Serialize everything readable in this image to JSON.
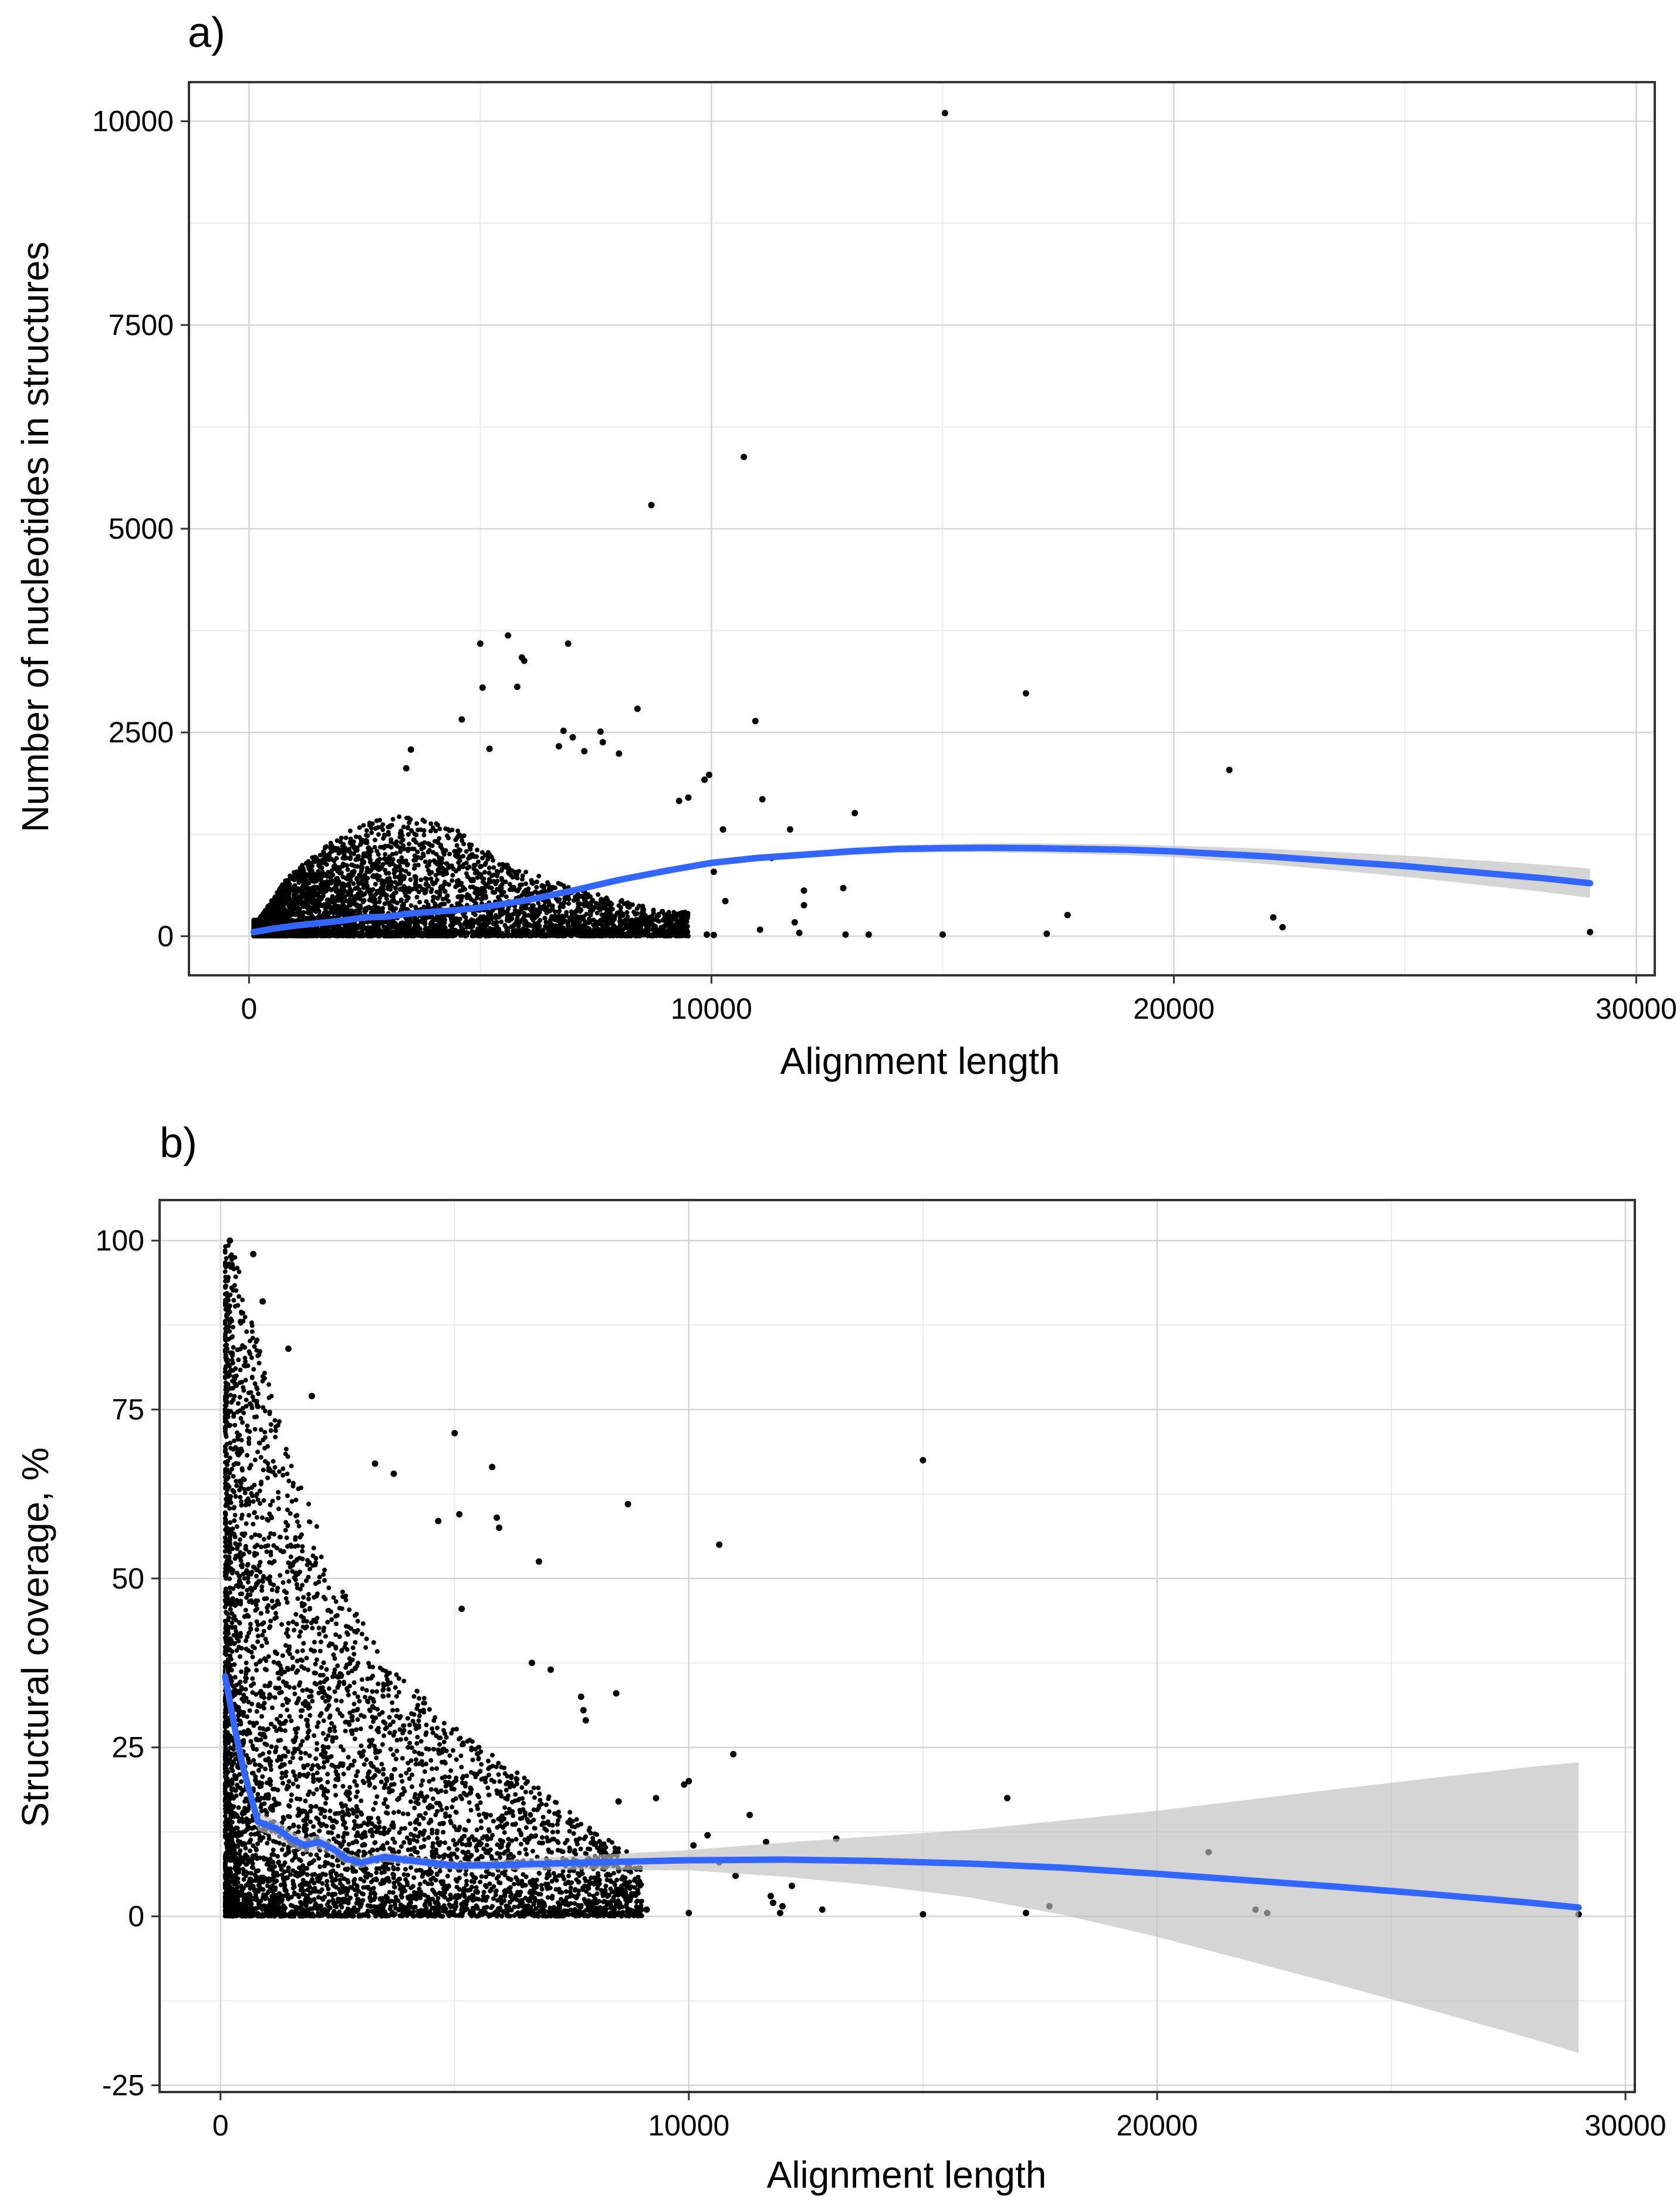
{
  "chart_data": [
    {
      "panel_label": "a)",
      "type": "scatter",
      "title": "",
      "xlabel": "Alignment length",
      "ylabel": "Number of nucleotides in structures",
      "xlim": [
        -1300,
        30400
      ],
      "ylim": [
        -480,
        10480
      ],
      "x_ticks": [
        0,
        10000,
        20000,
        30000
      ],
      "x_tick_labels": [
        "0",
        "10000",
        "20000",
        "30000"
      ],
      "y_ticks": [
        0,
        2500,
        5000,
        7500,
        10000
      ],
      "y_tick_labels": [
        "0",
        "2500",
        "5000",
        "7500",
        "10000"
      ],
      "grid": true,
      "point_color": "#000000",
      "smooth_color": "#3366ff",
      "band_color": "#bebebe",
      "dense_cloud": {
        "description": "thousands of points",
        "x_range": [
          100,
          9500
        ],
        "y_max_at_x": [
          [
            200,
            200
          ],
          [
            800,
            700
          ],
          [
            1600,
            1100
          ],
          [
            2500,
            1400
          ],
          [
            3500,
            1500
          ],
          [
            4500,
            1300
          ],
          [
            5500,
            900
          ],
          [
            7000,
            600
          ],
          [
            9000,
            300
          ]
        ]
      },
      "points": [
        [
          15050,
          10100
        ],
        [
          10700,
          5880
        ],
        [
          8700,
          5290
        ],
        [
          5600,
          3690
        ],
        [
          5000,
          3590
        ],
        [
          6900,
          3590
        ],
        [
          5900,
          3420
        ],
        [
          5950,
          3380
        ],
        [
          5800,
          3060
        ],
        [
          5050,
          3050
        ],
        [
          8400,
          2790
        ],
        [
          4600,
          2660
        ],
        [
          10950,
          2640
        ],
        [
          6800,
          2520
        ],
        [
          7000,
          2440
        ],
        [
          7600,
          2510
        ],
        [
          7650,
          2380
        ],
        [
          7250,
          2270
        ],
        [
          6700,
          2330
        ],
        [
          8000,
          2240
        ],
        [
          5200,
          2300
        ],
        [
          3500,
          2290
        ],
        [
          3400,
          2060
        ],
        [
          9950,
          1980
        ],
        [
          9850,
          1920
        ],
        [
          9500,
          1700
        ],
        [
          9300,
          1660
        ],
        [
          11100,
          1680
        ],
        [
          11700,
          1310
        ],
        [
          13100,
          1510
        ],
        [
          10250,
          1310
        ],
        [
          11300,
          960
        ],
        [
          10050,
          790
        ],
        [
          10300,
          430
        ],
        [
          12000,
          560
        ],
        [
          12000,
          380
        ],
        [
          11800,
          170
        ],
        [
          11900,
          40
        ],
        [
          11050,
          80
        ],
        [
          9900,
          20
        ],
        [
          10050,
          15
        ],
        [
          12850,
          590
        ],
        [
          12900,
          20
        ],
        [
          13400,
          20
        ],
        [
          15000,
          20
        ],
        [
          16800,
          2980
        ],
        [
          17700,
          260
        ],
        [
          17250,
          30
        ],
        [
          21200,
          2040
        ],
        [
          22150,
          230
        ],
        [
          22350,
          110
        ],
        [
          29000,
          50
        ]
      ],
      "smooth": {
        "x": [
          100,
          500,
          1000,
          2000,
          2500,
          3000,
          3500,
          4500,
          5000,
          6000,
          7000,
          8000,
          9000,
          10000,
          11000,
          12000,
          13000,
          14000,
          15000,
          16000,
          17000,
          18000,
          19000,
          20000,
          21000,
          22000,
          23000,
          24000,
          25000,
          26000,
          27000,
          28000,
          29000
        ],
        "y": [
          50,
          90,
          130,
          190,
          230,
          240,
          280,
          320,
          350,
          440,
          560,
          690,
          800,
          900,
          960,
          1000,
          1040,
          1070,
          1080,
          1085,
          1080,
          1070,
          1060,
          1040,
          1010,
          980,
          940,
          900,
          860,
          810,
          760,
          710,
          650
        ]
      },
      "band_halfwidth": {
        "x": [
          100,
          5000,
          10000,
          15000,
          20000,
          25000,
          29000
        ],
        "y": [
          20,
          30,
          40,
          50,
          70,
          130,
          180
        ]
      }
    },
    {
      "panel_label": "b)",
      "type": "scatter",
      "title": "",
      "xlabel": "Alignment length",
      "ylabel": "Structural coverage, %",
      "xlim": [
        -1300,
        30200
      ],
      "ylim": [
        -26,
        106
      ],
      "x_ticks": [
        0,
        10000,
        20000,
        30000
      ],
      "x_tick_labels": [
        "0",
        "10000",
        "20000",
        "30000"
      ],
      "y_ticks": [
        -25,
        0,
        25,
        50,
        75,
        100
      ],
      "y_tick_labels": [
        "-25",
        "0",
        "25",
        "50",
        "75",
        "100"
      ],
      "grid": true,
      "point_color": "#000000",
      "smooth_color": "#3366ff",
      "band_color": "#bebebe",
      "dense_cloud": {
        "description": "thousands of points",
        "x_range": [
          100,
          9000
        ],
        "y_max_at_x": [
          [
            100,
            100
          ],
          [
            300,
            98
          ],
          [
            600,
            90
          ],
          [
            1000,
            80
          ],
          [
            1500,
            68
          ],
          [
            2500,
            50
          ],
          [
            3500,
            38
          ],
          [
            5000,
            28
          ],
          [
            7000,
            18
          ],
          [
            9000,
            8
          ]
        ]
      },
      "points": [
        [
          200,
          100
        ],
        [
          700,
          98
        ],
        [
          900,
          91
        ],
        [
          1450,
          84
        ],
        [
          1950,
          77
        ],
        [
          3300,
          67
        ],
        [
          3700,
          65.5
        ],
        [
          5000,
          71.5
        ],
        [
          5800,
          66.5
        ],
        [
          5900,
          59
        ],
        [
          5100,
          59.5
        ],
        [
          5950,
          57.5
        ],
        [
          4650,
          58.5
        ],
        [
          8700,
          61
        ],
        [
          6800,
          52.5
        ],
        [
          5150,
          45.5
        ],
        [
          15000,
          67.5
        ],
        [
          10650,
          55
        ],
        [
          6650,
          37.5
        ],
        [
          7050,
          36.5
        ],
        [
          8450,
          33
        ],
        [
          7700,
          32.5
        ],
        [
          7750,
          30.5
        ],
        [
          7800,
          29
        ],
        [
          10950,
          24
        ],
        [
          10000,
          20
        ],
        [
          9900,
          19.5
        ],
        [
          9300,
          17.5
        ],
        [
          8500,
          17
        ],
        [
          11300,
          15
        ],
        [
          13150,
          11.5
        ],
        [
          11650,
          11
        ],
        [
          10400,
          12
        ],
        [
          10100,
          10.5
        ],
        [
          10650,
          8
        ],
        [
          11000,
          6
        ],
        [
          11750,
          3
        ],
        [
          11800,
          2
        ],
        [
          11950,
          0.5
        ],
        [
          12200,
          4.5
        ],
        [
          12000,
          1.5
        ],
        [
          12850,
          1
        ],
        [
          16800,
          17.5
        ],
        [
          21100,
          9.5
        ],
        [
          17700,
          1.5
        ],
        [
          17200,
          0.5
        ],
        [
          15000,
          0.3
        ],
        [
          22100,
          1
        ],
        [
          22350,
          0.5
        ],
        [
          29000,
          0.3
        ],
        [
          10000,
          0.5
        ],
        [
          9100,
          1
        ],
        [
          8400,
          0.5
        ]
      ],
      "smooth": {
        "x": [
          100,
          300,
          500,
          700,
          800,
          1000,
          1200,
          1500,
          1800,
          2100,
          2400,
          2700,
          3000,
          3500,
          4000,
          5000,
          6000,
          8000,
          10000,
          12000,
          14000,
          16000,
          18000,
          20000,
          22000,
          24000,
          26000,
          28000,
          29000
        ],
        "y": [
          35.5,
          28,
          21.5,
          16.5,
          14,
          13.5,
          13,
          11.5,
          10.5,
          11,
          10,
          8.5,
          7.9,
          8.8,
          8.3,
          7.5,
          7.6,
          8,
          8.3,
          8.4,
          8.2,
          7.8,
          7.2,
          6.3,
          5.3,
          4.3,
          3.2,
          2,
          1.3
        ]
      },
      "band_halfwidth": {
        "x": [
          100,
          3000,
          5000,
          7000,
          10000,
          13000,
          16000,
          19000,
          22000,
          25000,
          29000
        ],
        "y": [
          1.5,
          0.8,
          0.6,
          0.9,
          1.5,
          3,
          5,
          8,
          12,
          16,
          21.5
        ]
      }
    }
  ]
}
